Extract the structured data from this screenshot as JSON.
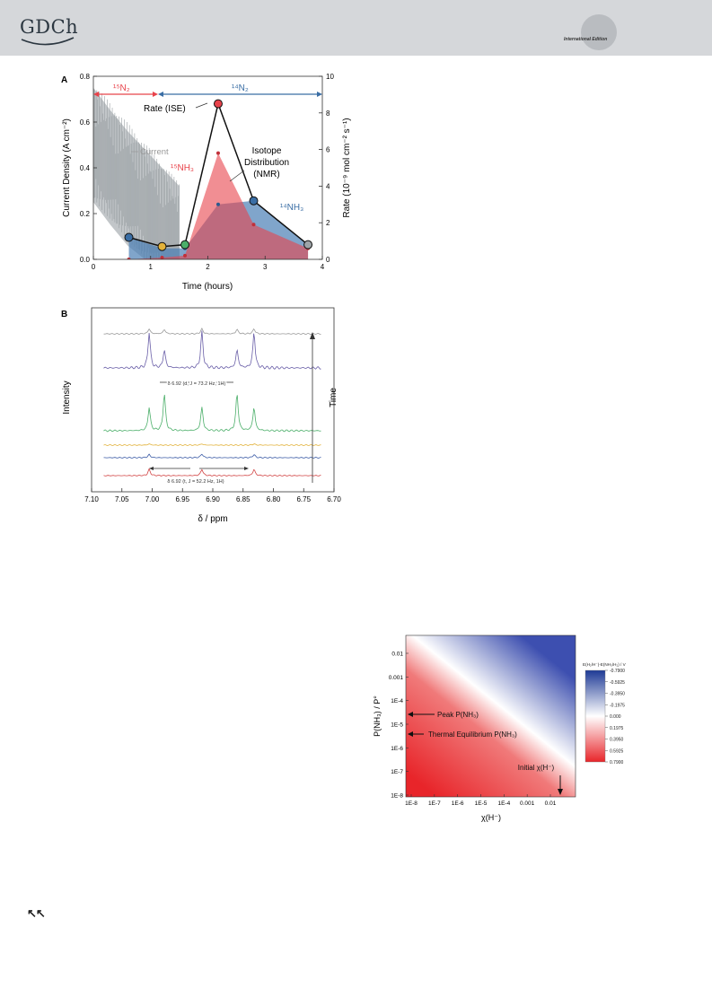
{
  "header": {
    "logo_text": "GDCh",
    "edition": "International Edition"
  },
  "footer": {
    "nav_arrows": "↖↖"
  },
  "figure_a": {
    "panel_label": "A",
    "xlabel": "Time (hours)",
    "ylabel_left": "Current Density (A cm⁻²)",
    "ylabel_right": "Rate (10⁻⁹ mol cm⁻² s⁻¹)",
    "gas_15": "¹⁵N₂",
    "gas_14": "¹⁴N₂",
    "ann_rate": "Rate (ISE)",
    "ann_current": "Current",
    "ann_iso1": "Isotope",
    "ann_iso2": "Distribution",
    "ann_iso3": "(NMR)",
    "ann_15nh3": "¹⁵NH₃",
    "ann_14nh3": "¹⁴NH₃",
    "colors": {
      "red": "#e8434b",
      "blue": "#3a6ea5",
      "grey": "#9ea4a8",
      "green": "#4caf6a",
      "yellow": "#e2b23b"
    }
  },
  "figure_b": {
    "panel_label": "B",
    "xlabel": "δ / ppm",
    "ylabel": "Intensity",
    "right_label": "Time",
    "ann_d": "δ 6.92 (d, J = 73.2 Hz, 1H)",
    "ann_t": "δ 6.92 (t, J = 52.2 Hz, 1H)"
  },
  "figure_c": {
    "xlabel": "χ(H⁻)",
    "ylabel": "P(NH₃) / P°",
    "colorbar_title": "E(H₂/H⁻)-E(NH₃/H₂) / V",
    "ann_peak": "Peak P(NH₃)",
    "ann_thermal": "Thermal Equilibrium P(NH₃)",
    "ann_initial": "Initial χ(H⁻)"
  },
  "chart_data": [
    {
      "type": "line",
      "title": "A",
      "xlabel": "Time (hours)",
      "ylabel": "Current Density (A cm⁻²)",
      "y2label": "Rate (10⁻⁹ mol cm⁻² s⁻¹)",
      "xlim": [
        0,
        4
      ],
      "xticks": [
        "0",
        "1",
        "2",
        "3",
        "4"
      ],
      "ylim": [
        0,
        0.8
      ],
      "yticks": [
        "0.0",
        "0.2",
        "0.4",
        "0.6",
        "0.8"
      ],
      "y2lim": [
        0,
        10
      ],
      "y2ticks": [
        "0",
        "2",
        "4",
        "6",
        "8",
        "10"
      ],
      "series": [
        {
          "name": "Rate (ISE)",
          "axis": "right",
          "x": [
            0.62,
            1.2,
            1.6,
            2.18,
            2.8,
            3.75
          ],
          "y": [
            1.2,
            0.7,
            0.8,
            8.5,
            3.2,
            0.8
          ],
          "point_colors": [
            "#3a6ea5",
            "#e2b23b",
            "#4caf6a",
            "#e8434b",
            "#3a6ea5",
            "#9ea4a8"
          ]
        },
        {
          "name": "¹⁵NH₃",
          "axis": "right",
          "x": [
            0.62,
            1.2,
            1.6,
            2.18,
            2.8,
            3.75
          ],
          "y": [
            0.0,
            0.1,
            0.2,
            5.8,
            1.9,
            0.6
          ]
        },
        {
          "name": "¹⁴NH₃",
          "axis": "right",
          "x": [
            0.62,
            1.2,
            1.6,
            2.18,
            2.8,
            3.75
          ],
          "y": [
            1.2,
            0.6,
            0.6,
            3.0,
            3.2,
            0.8
          ]
        },
        {
          "name": "Current",
          "axis": "left",
          "x": [
            0,
            0.3,
            0.6,
            0.9,
            1.2,
            1.5
          ],
          "y": [
            0.45,
            0.35,
            0.26,
            0.18,
            0.1,
            0.02
          ]
        }
      ]
    },
    {
      "type": "line",
      "title": "B",
      "xlabel": "δ / ppm",
      "ylabel": "Intensity",
      "xlim": [
        7.1,
        6.7
      ],
      "xticks": [
        "7.10",
        "7.05",
        "7.00",
        "6.95",
        "6.90",
        "6.85",
        "6.80",
        "6.75",
        "6.70"
      ],
      "series": [
        {
          "color": "#d24545",
          "peaks": [
            7.005,
            6.918,
            6.832
          ],
          "amp": [
            0.5,
            0.5,
            0.5
          ]
        },
        {
          "color": "#3a5aa5",
          "peaks": [
            7.005,
            6.918,
            6.832
          ],
          "amp": [
            0.25,
            0.3,
            0.25
          ]
        },
        {
          "color": "#e2b23b",
          "peaks": [
            7.005,
            6.918,
            6.832
          ],
          "amp": [
            0.1,
            0.1,
            0.1
          ]
        },
        {
          "color": "#4caf6a",
          "peaks": [
            7.005,
            6.98,
            6.918,
            6.86,
            6.832
          ],
          "amp": [
            1.0,
            1.6,
            1.0,
            1.6,
            1.0
          ]
        },
        {
          "color": "#6a5fa8",
          "peaks": [
            7.005,
            6.98,
            6.918,
            6.86,
            6.832
          ],
          "amp": [
            1.0,
            0.5,
            1.0,
            0.5,
            1.0
          ]
        },
        {
          "color": "#9a9a9a",
          "peaks": [
            7.005,
            6.98,
            6.918,
            6.86,
            6.832
          ],
          "amp": [
            0.35,
            0.3,
            0.35,
            0.3,
            0.35
          ]
        }
      ]
    },
    {
      "type": "heatmap",
      "xlabel": "χ(H⁻)",
      "ylabel": "P(NH₃) / P°",
      "x_scale": "log",
      "y_scale": "log",
      "xticks": [
        "1E-8",
        "1E-7",
        "1E-6",
        "1E-5",
        "1E-4",
        "0.001",
        "0.01"
      ],
      "yticks": [
        "1E-8",
        "1E-7",
        "1E-6",
        "1E-5",
        "1E-4",
        "0.001",
        "0.01"
      ],
      "colorbar_ticks": [
        "-0.7900",
        "-0.5925",
        "-0.3950",
        "-0.1975",
        "0.000",
        "0.1975",
        "0.3950",
        "0.5925",
        "0.7900"
      ],
      "colorbar_range": [
        -0.79,
        0.79
      ]
    }
  ]
}
